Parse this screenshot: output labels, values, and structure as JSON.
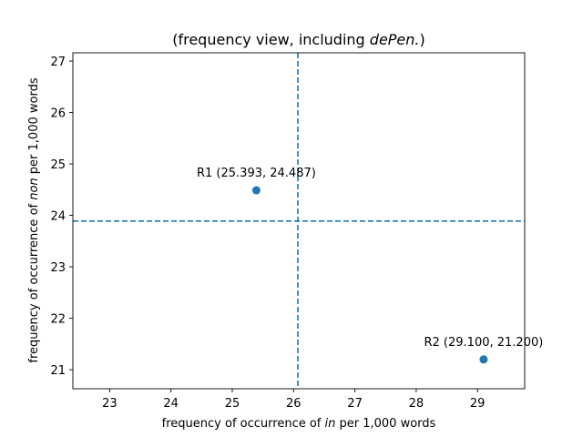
{
  "chart_data": {
    "type": "scatter",
    "title": {
      "prefix": "(frequency view, including ",
      "emph": "dePen.",
      "suffix": ")"
    },
    "xlabel": {
      "prefix": "frequency of occurrence of ",
      "emph": "in",
      "suffix": " per 1,000 words"
    },
    "ylabel": {
      "prefix": "frequency of occurrence of ",
      "emph": "non",
      "suffix": " per 1,000 words"
    },
    "xlim": [
      22.4,
      29.77
    ],
    "ylim": [
      20.63,
      27.16
    ],
    "xticks": [
      23,
      24,
      25,
      26,
      27,
      28,
      29
    ],
    "yticks": [
      21,
      22,
      23,
      24,
      25,
      26,
      27
    ],
    "points": [
      {
        "label": "R1 (25.393, 24.487)",
        "x": 25.393,
        "y": 24.487
      },
      {
        "label": "R2 (29.100, 21.200)",
        "x": 29.1,
        "y": 21.2
      }
    ],
    "vline_x": 26.07,
    "hline_y": 23.89,
    "color": "#1f77b4",
    "grid": false
  }
}
